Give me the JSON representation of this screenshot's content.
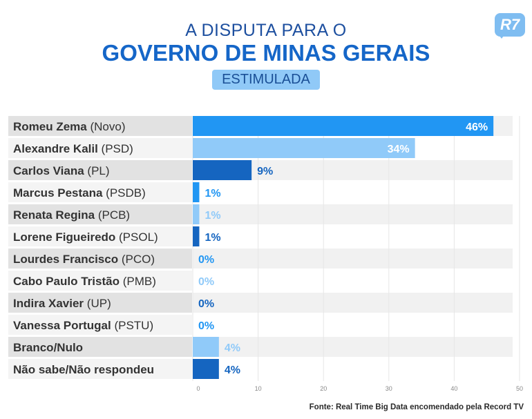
{
  "header": {
    "title_line1": "A DISPUTA PARA O",
    "title_line2": "GOVERNO DE MINAS GERAIS",
    "badge": "ESTIMULADA",
    "logo": "R7"
  },
  "chart_data": {
    "type": "bar",
    "orientation": "horizontal",
    "categories": [
      {
        "name": "Romeu Zema",
        "party": "(Novo)"
      },
      {
        "name": "Alexandre Kalil",
        "party": "(PSD)"
      },
      {
        "name": "Carlos Viana",
        "party": "(PL)"
      },
      {
        "name": "Marcus Pestana",
        "party": "(PSDB)"
      },
      {
        "name": "Renata Regina",
        "party": "(PCB)"
      },
      {
        "name": "Lorene Figueiredo",
        "party": "(PSOL)"
      },
      {
        "name": "Lourdes Francisco",
        "party": "(PCO)"
      },
      {
        "name": "Cabo Paulo Tristão",
        "party": "(PMB)"
      },
      {
        "name": "Indira Xavier",
        "party": "(UP)"
      },
      {
        "name": "Vanessa Portugal",
        "party": "(PSTU)"
      },
      {
        "name": "Branco/Nulo",
        "party": ""
      },
      {
        "name": "Não sabe/Não respondeu",
        "party": ""
      }
    ],
    "values": [
      46,
      34,
      9,
      1,
      1,
      1,
      0,
      0,
      0,
      0,
      4,
      4
    ],
    "value_labels": [
      "46%",
      "34%",
      "9%",
      "1%",
      "1%",
      "1%",
      "0%",
      "0%",
      "0%",
      "0%",
      "4%",
      "4%"
    ],
    "bar_colors": [
      "#2196f3",
      "#90caf9",
      "#1565c0",
      "#2196f3",
      "#90caf9",
      "#1565c0",
      "#2196f3",
      "#90caf9",
      "#1565c0",
      "#2196f3",
      "#90caf9",
      "#1565c0"
    ],
    "xlim": [
      0,
      50
    ],
    "xticks": [
      0,
      10,
      20,
      30,
      40,
      50
    ],
    "grid": true
  },
  "footer": {
    "source": "Fonte: Real Time Big Data encomendado pela Record TV"
  }
}
